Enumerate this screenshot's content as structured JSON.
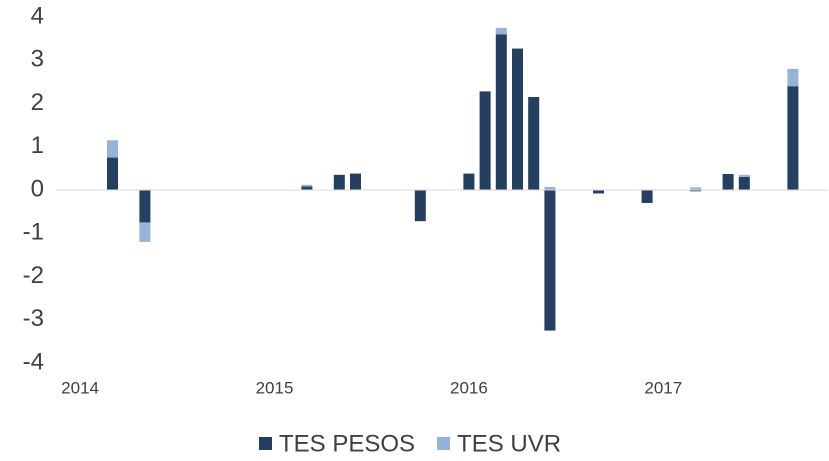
{
  "chart_data": {
    "type": "bar",
    "stacked": true,
    "categories": [
      "2014",
      null,
      null,
      null,
      null,
      null,
      null,
      null,
      null,
      null,
      null,
      null,
      "2015",
      null,
      null,
      null,
      null,
      null,
      null,
      null,
      null,
      null,
      null,
      null,
      "2016",
      null,
      null,
      null,
      null,
      null,
      null,
      null,
      null,
      null,
      null,
      null,
      "2017",
      null,
      null,
      null,
      null,
      null,
      null,
      null,
      null,
      null
    ],
    "series": [
      {
        "name": "TES PESOS",
        "color": "#243f60",
        "values": [
          0,
          0,
          0.75,
          0,
          -0.75,
          0,
          0,
          0,
          0,
          0,
          0,
          0,
          0,
          0,
          0.08,
          0,
          0.35,
          0.38,
          0,
          0,
          0,
          -0.72,
          0,
          0,
          0.38,
          2.28,
          3.6,
          3.27,
          2.15,
          -3.25,
          0,
          0,
          -0.08,
          0,
          0,
          -0.3,
          0,
          0,
          -0.03,
          0,
          0.37,
          0.3,
          0,
          0,
          2.4,
          0
        ]
      },
      {
        "name": "TES UVR",
        "color": "#95b3d7",
        "values": [
          0,
          0,
          0.4,
          0,
          -0.45,
          0,
          0,
          0,
          0,
          0,
          0,
          0,
          0,
          0,
          0.04,
          0,
          0,
          0,
          0,
          0,
          0,
          0,
          0,
          0,
          0,
          0,
          0.15,
          0,
          0,
          0.07,
          0,
          0,
          0,
          0,
          0,
          0,
          0,
          0,
          0.06,
          0,
          0,
          0.05,
          0,
          0,
          0.4,
          0
        ]
      }
    ],
    "ylim": [
      -4,
      4
    ],
    "yticks": [
      -4,
      -3,
      -2,
      -1,
      0,
      1,
      2,
      3,
      4
    ],
    "grid": false,
    "legend": "bottom"
  }
}
